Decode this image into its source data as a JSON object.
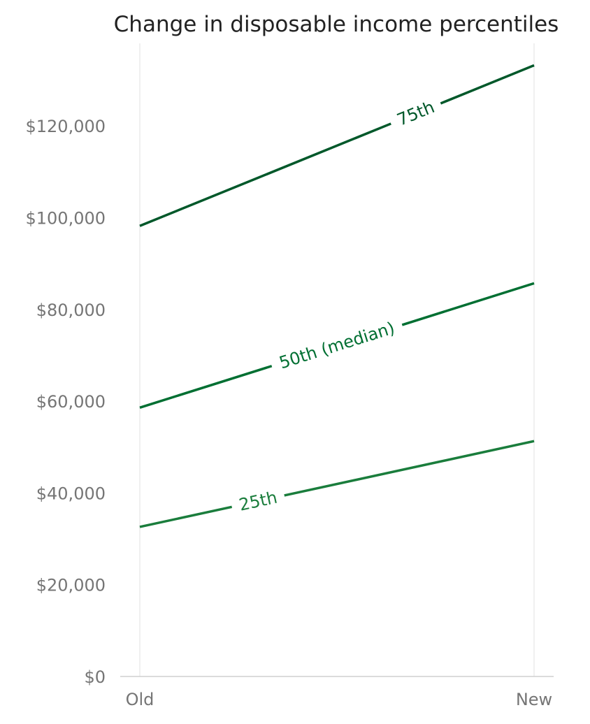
{
  "chart_data": {
    "type": "line",
    "title": "Change in disposable income percentiles",
    "xlabel": "",
    "ylabel": "",
    "categories": [
      "Old",
      "New"
    ],
    "ylim": [
      0,
      138000
    ],
    "yticks": [
      {
        "value": 0,
        "label": "$0"
      },
      {
        "value": 20000,
        "label": "$20,000"
      },
      {
        "value": 40000,
        "label": "$40,000"
      },
      {
        "value": 60000,
        "label": "$60,000"
      },
      {
        "value": 80000,
        "label": "$80,000"
      },
      {
        "value": 100000,
        "label": "$100,000"
      },
      {
        "value": 120000,
        "label": "$120,000"
      }
    ],
    "grid": "vertical-only",
    "legend": "inline labels on lines",
    "series": [
      {
        "name": "75th",
        "values": [
          98200,
          133200
        ],
        "color": "#00582a",
        "label_at": 0.7
      },
      {
        "name": "50th (median)",
        "values": [
          58600,
          85700
        ],
        "color": "#006f32",
        "label_at": 0.5
      },
      {
        "name": "25th",
        "values": [
          32600,
          51300
        ],
        "color": "#1a7d3c",
        "label_at": 0.3
      }
    ]
  }
}
